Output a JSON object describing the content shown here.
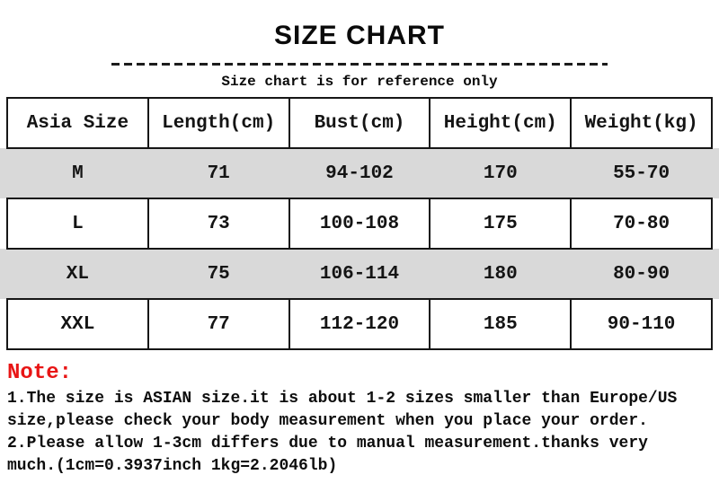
{
  "page": {
    "title": "SIZE CHART",
    "subtitle": "Size chart is for reference only"
  },
  "size_table": {
    "headers": [
      "Asia Size",
      "Length(cm)",
      "Bust(cm)",
      "Height(cm)",
      "Weight(kg)"
    ],
    "rows": [
      [
        "M",
        "71",
        "94-102",
        "170",
        "55-70"
      ],
      [
        "L",
        "73",
        "100-108",
        "175",
        "70-80"
      ],
      [
        "XL",
        "75",
        "106-114",
        "180",
        "80-90"
      ],
      [
        "XXL",
        "77",
        "112-120",
        "185",
        "90-110"
      ]
    ]
  },
  "note": {
    "label": "Note:",
    "lines": [
      "1.The size is ASIAN size.it is about 1-2 sizes smaller than Europe/US",
      "size,please check your body measurement when you place your order.",
      "2.Please allow 1-3cm differs due to manual measurement.thanks very",
      "much.(1cm=0.3937inch 1kg=2.2046lb)"
    ]
  },
  "colors": {
    "stripe": "#d9d9d9",
    "note-red": "#e81515",
    "border": "#161616",
    "text": "#111111"
  }
}
